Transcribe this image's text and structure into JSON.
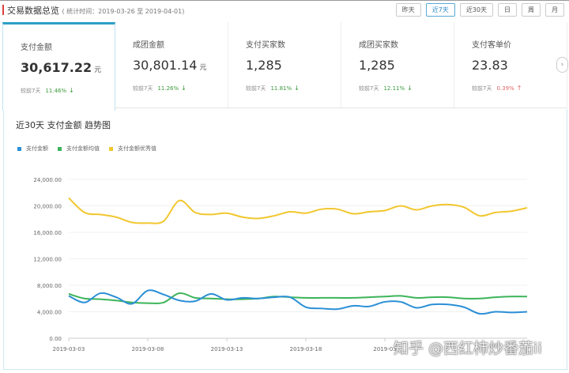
{
  "header": {
    "title": "交易数据总览",
    "subtitle": "( 统计时间：2019-03-26 至 2019-04-01)",
    "accent": "#e0403a"
  },
  "range_buttons": [
    {
      "label": "昨天"
    },
    {
      "label": "近7天",
      "active": true
    },
    {
      "label": "近30天"
    },
    {
      "label": "日"
    },
    {
      "label": "周"
    },
    {
      "label": "月"
    }
  ],
  "cards": [
    {
      "label": "支付金额",
      "value": "30,617.22",
      "unit": "元",
      "compare": "较前7天",
      "pct": "11.46%",
      "trend": "down",
      "selected": true
    },
    {
      "label": "成团金额",
      "value": "30,801.14",
      "unit": "元",
      "compare": "较前7天",
      "pct": "11.26%",
      "trend": "down"
    },
    {
      "label": "支付买家数",
      "value": "1,285",
      "unit": "",
      "compare": "较前7天",
      "pct": "11.81%",
      "trend": "down"
    },
    {
      "label": "成团买家数",
      "value": "1,285",
      "unit": "",
      "compare": "较前7天",
      "pct": "12.11%",
      "trend": "down"
    },
    {
      "label": "支付客单价",
      "value": "23.83",
      "unit": "",
      "compare": "较前7天",
      "pct": "0.39%",
      "trend": "up"
    }
  ],
  "next_icon": "chevron-right-icon",
  "watermark": "知乎 @西红柿炒番茄ii",
  "chart_data": {
    "type": "line",
    "title": "近30天 支付金额 趋势图",
    "legend_position": "top-left",
    "ylim": [
      0,
      24000
    ],
    "yticks": [
      "0.00",
      "4,000.00",
      "8,000.00",
      "12,000.00",
      "16,000.00",
      "20,000.00",
      "24,000.00"
    ],
    "xticks": [
      "2019-03-03",
      "2019-03-08",
      "2019-03-13",
      "2019-03-18",
      "2019-03"
    ],
    "x_start": "2019-03-03",
    "x_end": "2019-04-01",
    "grid": "horizontal",
    "series": [
      {
        "name": "支付金额",
        "color": "#2b8fd6",
        "values": [
          6400,
          5400,
          6800,
          6200,
          5200,
          7200,
          6600,
          5700,
          5600,
          6700,
          5800,
          6100,
          6000,
          6200,
          6200,
          4700,
          4500,
          4400,
          4900,
          4800,
          5500,
          5500,
          4600,
          5100,
          5100,
          4700,
          3700,
          4000,
          3900,
          4000
        ]
      },
      {
        "name": "支付金额均值",
        "color": "#3cb45a",
        "values": [
          6700,
          6000,
          5900,
          5700,
          5400,
          5300,
          5400,
          6800,
          6100,
          6000,
          5900,
          5900,
          6000,
          6300,
          6200,
          6100,
          6100,
          6100,
          6100,
          6200,
          6300,
          6400,
          6100,
          6200,
          6200,
          6000,
          6000,
          6200,
          6300,
          6300
        ]
      },
      {
        "name": "支付金额优秀值",
        "color": "#f2c72e",
        "values": [
          21200,
          19000,
          18700,
          18300,
          17500,
          17400,
          17700,
          20800,
          19000,
          18700,
          18900,
          18300,
          18100,
          18500,
          19100,
          18900,
          19500,
          19500,
          18800,
          19100,
          19300,
          20000,
          19400,
          20000,
          20200,
          19800,
          18500,
          19000,
          19200,
          19700
        ]
      }
    ]
  }
}
